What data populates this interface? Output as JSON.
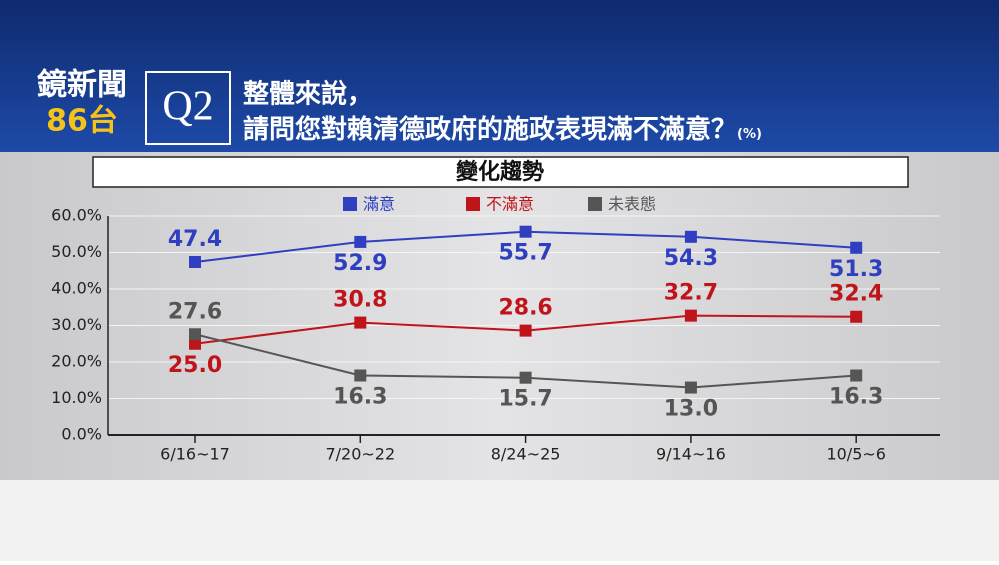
{
  "header": {
    "logo_line1": "鏡新聞",
    "logo_line2": "86台",
    "question_no": "Q2",
    "question_line1": "整體來說，",
    "question_line2": "請問您對賴清德政府的施政表現滿不滿意？",
    "unit_note": "(%)"
  },
  "chart_data": {
    "type": "line",
    "title": "變化趨勢",
    "categories": [
      "6/16~17",
      "7/20~22",
      "8/24~25",
      "9/14~16",
      "10/5~6"
    ],
    "series": [
      {
        "name": "滿意",
        "color": "#2f3fbf",
        "values": [
          47.4,
          52.9,
          55.7,
          54.3,
          51.3
        ],
        "value_labels": [
          "47.4",
          "52.9",
          "55.7",
          "54.3",
          "51.3"
        ]
      },
      {
        "name": "不滿意",
        "color": "#c0141b",
        "values": [
          25.0,
          30.8,
          28.6,
          32.7,
          32.4
        ],
        "value_labels": [
          "25.0",
          "30.8",
          "28.6",
          "32.7",
          "32.4"
        ]
      },
      {
        "name": "未表態",
        "color": "#555555",
        "values": [
          27.6,
          16.3,
          15.7,
          13.0,
          16.3
        ],
        "value_labels": [
          "27.6",
          "16.3",
          "15.7",
          "13.0",
          "16.3"
        ]
      }
    ],
    "ylim": [
      0,
      60
    ],
    "yticks": [
      {
        "value": 0,
        "label": "0.0%"
      },
      {
        "value": 10,
        "label": "10.0%"
      },
      {
        "value": 20,
        "label": "20.0%"
      },
      {
        "value": 30,
        "label": "30.0%"
      },
      {
        "value": 40,
        "label": "40.0%"
      },
      {
        "value": 50,
        "label": "50.0%"
      },
      {
        "value": 60,
        "label": "60.0%"
      }
    ],
    "grid": true,
    "legend": "top"
  }
}
